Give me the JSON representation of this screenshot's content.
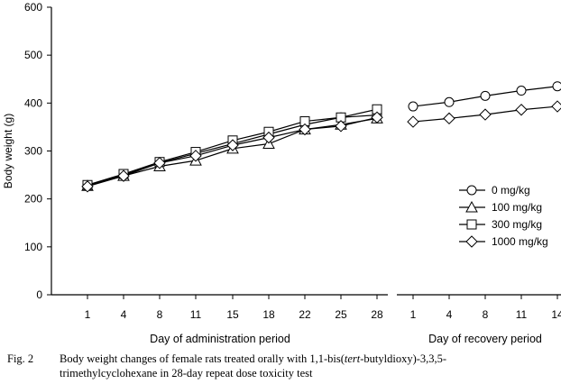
{
  "chart_data": {
    "type": "line",
    "ylabel": "Body weight (g)",
    "ylim": [
      0,
      600
    ],
    "yticks": [
      0,
      100,
      200,
      300,
      400,
      500,
      600
    ],
    "panels": [
      {
        "xlabel": "Day of administration period",
        "categories": [
          "1",
          "4",
          "8",
          "11",
          "15",
          "18",
          "22",
          "25",
          "28"
        ]
      },
      {
        "xlabel": "Day of recovery period",
        "categories": [
          "1",
          "4",
          "8",
          "11",
          "14"
        ]
      }
    ],
    "series": [
      {
        "name": "0 mg/kg",
        "marker": "circle",
        "administration": [
          228,
          250,
          275,
          295,
          315,
          335,
          355,
          370,
          375
        ],
        "recovery": [
          393,
          402,
          415,
          426,
          435
        ]
      },
      {
        "name": "100 mg/kg",
        "marker": "triangle",
        "administration": [
          227,
          248,
          268,
          280,
          305,
          315,
          345,
          355,
          368
        ],
        "recovery": null
      },
      {
        "name": "300 mg/kg",
        "marker": "square",
        "administration": [
          229,
          252,
          277,
          298,
          322,
          340,
          362,
          370,
          387
        ],
        "recovery": null
      },
      {
        "name": "1000 mg/kg",
        "marker": "diamond",
        "administration": [
          226,
          248,
          275,
          290,
          312,
          328,
          345,
          352,
          370
        ],
        "recovery": [
          361,
          368,
          376,
          386,
          393
        ]
      }
    ],
    "legend_position": "right",
    "grid": false
  },
  "caption": {
    "label": "Fig. 2",
    "line1_pre": "Body weight changes of female rats treated orally with 1,1-bis(",
    "line1_italic": "tert",
    "line1_post": "-butyldioxy)-3,3,5-",
    "line2": "trimethylcyclohexane in 28-day repeat dose toxicity test"
  }
}
